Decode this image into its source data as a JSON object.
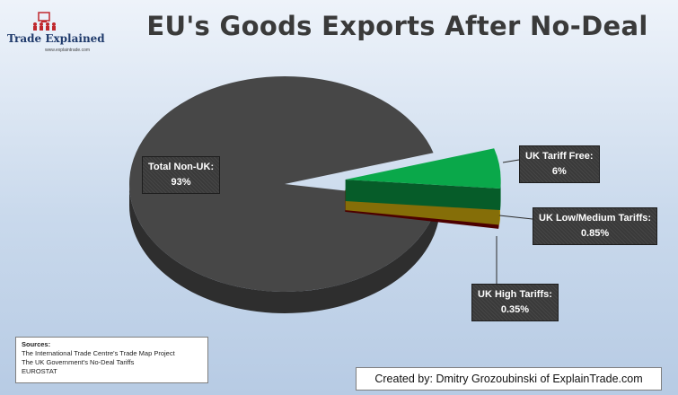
{
  "brand": {
    "name": "Trade Explained",
    "url": "www.explaintrade.com"
  },
  "colors": {
    "non_uk": "#474747",
    "tariff_free": "#0aa84a",
    "low_medium": "#f2c80f",
    "high": "#8b0000"
  },
  "chart_data": {
    "type": "pie",
    "title": "EU's Goods Exports After No-Deal",
    "slices": [
      {
        "label": "Total Non-UK:",
        "value_label": "93%",
        "value": 92.8
      },
      {
        "label": "UK Tariff Free:",
        "value_label": "6%",
        "value": 6.0
      },
      {
        "label": "UK Low/Medium Tariffs:",
        "value_label": "0.85%",
        "value": 0.85
      },
      {
        "label": "UK High Tariffs:",
        "value_label": "0.35%",
        "value": 0.35
      }
    ],
    "style": "3d-exploded"
  },
  "sources": {
    "heading": "Sources:",
    "lines": [
      "The International Trade Centre's Trade Map Project",
      "The UK Government's No-Deal Tariffs",
      "EUROSTAT"
    ]
  },
  "credit": "Created by: Dmitry Grozoubinski of ExplainTrade.com"
}
